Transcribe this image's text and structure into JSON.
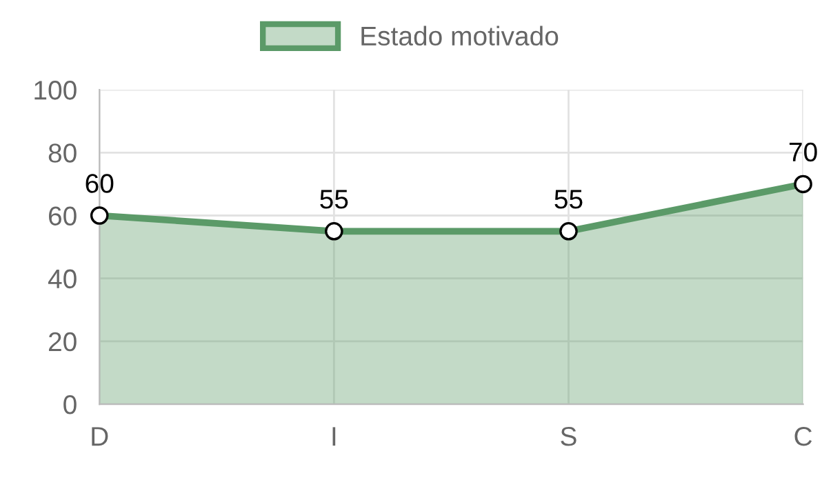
{
  "chart_data": {
    "type": "area",
    "categories": [
      "D",
      "I",
      "S",
      "C"
    ],
    "series": [
      {
        "name": "Estado motivado",
        "color": "#5b9a68",
        "values": [
          60,
          55,
          55,
          70
        ]
      }
    ],
    "ylim": [
      0,
      100
    ],
    "yticks": [
      0,
      20,
      40,
      60,
      80,
      100
    ],
    "grid": true,
    "legend": "top",
    "marker": "circle",
    "line_style": "solid",
    "data_labels": true
  }
}
